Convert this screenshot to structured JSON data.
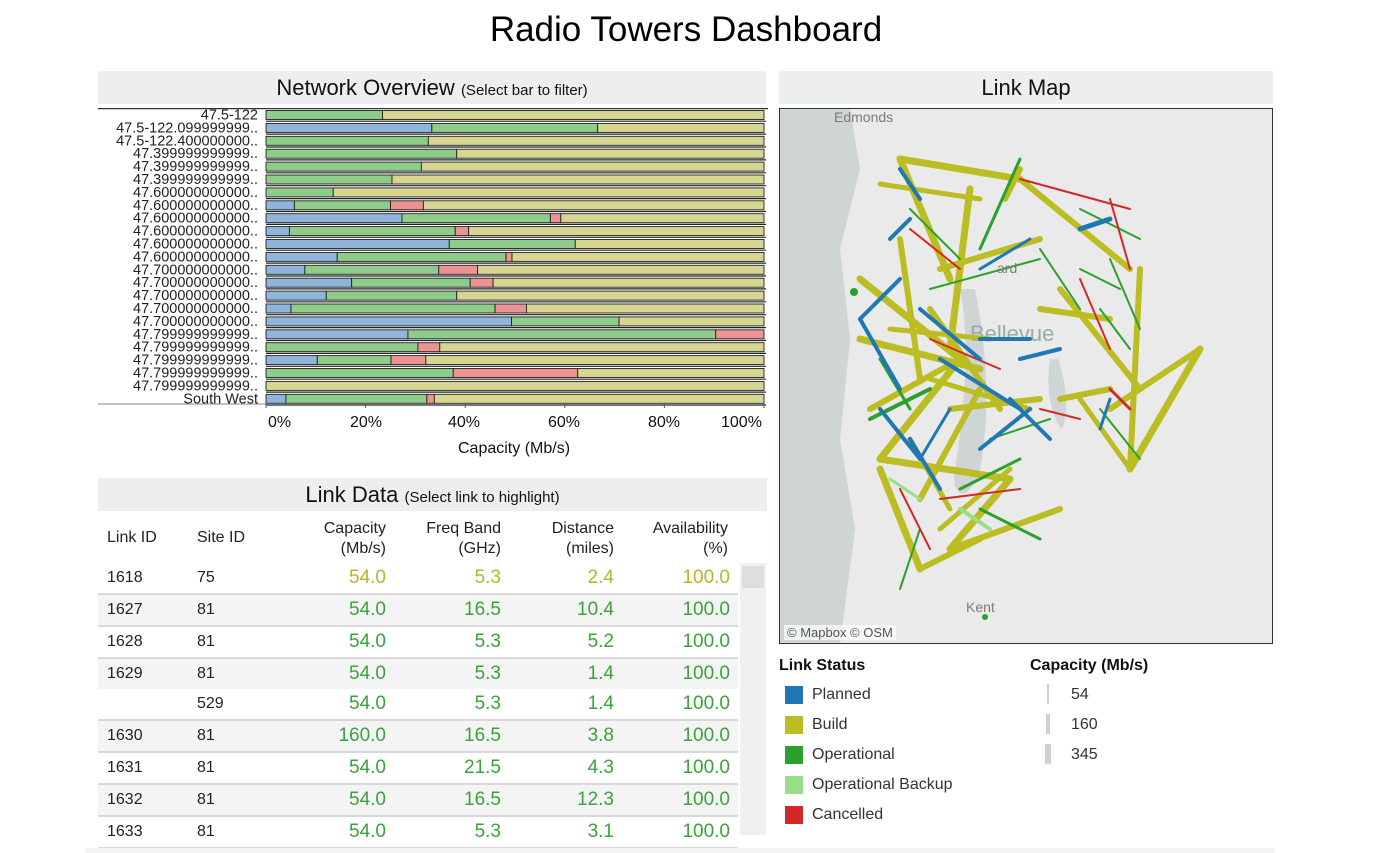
{
  "page": {
    "title": "Radio Towers Dashboard"
  },
  "overview": {
    "title": "Network Overview",
    "hint": "(Select bar to filter)",
    "axis_label": "Capacity (Mb/s)",
    "ticks": [
      "0%",
      "20%",
      "40%",
      "60%",
      "80%",
      "100%"
    ]
  },
  "chart_data": {
    "type": "bar",
    "stacked": true,
    "orientation": "horizontal",
    "xlabel": "Capacity (Mb/s)",
    "xlim": [
      0,
      100
    ],
    "categories": [
      "47.5-122",
      "47.5-122.099999999..",
      "47.5-122.400000000..",
      "47.399999999999..",
      "47.399999999999..",
      "47.399999999999..",
      "47.600000000000..",
      "47.600000000000..",
      "47.600000000000..",
      "47.600000000000..",
      "47.600000000000..",
      "47.600000000000..",
      "47.700000000000..",
      "47.700000000000..",
      "47.700000000000..",
      "47.700000000000..",
      "47.700000000000..",
      "47.799999999999..",
      "47.799999999999..",
      "47.799999999999..",
      "47.799999999999..",
      "47.799999999999..",
      "South West"
    ],
    "series": [
      {
        "name": "Planned",
        "color": "#8fb5dc",
        "values": [
          0,
          33.3,
          0,
          0,
          0,
          0,
          0,
          5.7,
          27.3,
          4.7,
          36.8,
          14.3,
          7.8,
          17.2,
          12.1,
          5,
          49.3,
          28.5,
          0,
          10.3,
          0,
          0,
          4
        ]
      },
      {
        "name": "Operational",
        "color": "#8ecc8a",
        "values": [
          23.4,
          33.3,
          32.6,
          38.3,
          31.2,
          25.3,
          13.5,
          19.3,
          29.8,
          33.3,
          25.3,
          33.9,
          26.9,
          23.8,
          26.2,
          41,
          21.6,
          61.8,
          30.5,
          14.8,
          37.6,
          0,
          28.3
        ]
      },
      {
        "name": "Cancelled",
        "color": "#ee9393",
        "values": [
          0,
          0,
          0,
          0,
          0,
          0,
          0,
          6.6,
          2.1,
          2.7,
          0,
          1.2,
          7.8,
          4.6,
          0,
          6.3,
          0,
          9.7,
          4.4,
          7,
          25,
          0,
          1.5
        ]
      },
      {
        "name": "Build",
        "color": "#d6d690",
        "values": [
          76.6,
          33.4,
          67.4,
          61.7,
          68.8,
          74.7,
          86.5,
          68.4,
          40.8,
          59.3,
          37.9,
          50.6,
          57.5,
          54.4,
          61.7,
          47.7,
          29.1,
          0,
          65.1,
          67.9,
          37.4,
          100,
          66.2
        ]
      }
    ]
  },
  "link_data": {
    "title": "Link Data",
    "hint": "(Select link to highlight)",
    "headers": {
      "link_id": "Link ID",
      "site_id": "Site ID",
      "capacity": [
        "Capacity",
        "(Mb/s)"
      ],
      "freq": [
        "Freq Band",
        "(GHz)"
      ],
      "distance": [
        "Distance",
        "(miles)"
      ],
      "availability": [
        "Availability",
        "(%)"
      ]
    },
    "rows": [
      {
        "link": "1618",
        "site": "75",
        "cap": "54.0",
        "freq": "5.3",
        "dist": "2.4",
        "avail": "100.0",
        "color": "#b5b52a"
      },
      {
        "link": "1627",
        "site": "81",
        "cap": "54.0",
        "freq": "16.5",
        "dist": "10.4",
        "avail": "100.0",
        "color": "#3aa43a"
      },
      {
        "link": "1628",
        "site": "81",
        "cap": "54.0",
        "freq": "5.3",
        "dist": "5.2",
        "avail": "100.0",
        "color": "#3aa43a"
      },
      {
        "link": "1629",
        "site": "81",
        "cap": "54.0",
        "freq": "5.3",
        "dist": "1.4",
        "avail": "100.0",
        "color": "#3aa43a"
      },
      {
        "link": "",
        "site": "529",
        "cap": "54.0",
        "freq": "5.3",
        "dist": "1.4",
        "avail": "100.0",
        "color": "#3aa43a"
      },
      {
        "link": "1630",
        "site": "81",
        "cap": "160.0",
        "freq": "16.5",
        "dist": "3.8",
        "avail": "100.0",
        "color": "#3aa43a"
      },
      {
        "link": "1631",
        "site": "81",
        "cap": "54.0",
        "freq": "21.5",
        "dist": "4.3",
        "avail": "100.0",
        "color": "#3aa43a"
      },
      {
        "link": "1632",
        "site": "81",
        "cap": "54.0",
        "freq": "16.5",
        "dist": "12.3",
        "avail": "100.0",
        "color": "#3aa43a"
      },
      {
        "link": "1633",
        "site": "81",
        "cap": "54.0",
        "freq": "5.3",
        "dist": "3.1",
        "avail": "100.0",
        "color": "#3aa43a"
      }
    ]
  },
  "map": {
    "title": "Link Map",
    "labels": {
      "edmonds": "Edmonds",
      "kent": "Kent",
      "bellevue": "Bellevue",
      "kirkland": "ard"
    },
    "attribution": "© Mapbox  © OSM"
  },
  "legend": {
    "status_title": "Link Status",
    "status_items": [
      {
        "label": "Planned",
        "color": "#1f77b4"
      },
      {
        "label": "Build",
        "color": "#bcbd22"
      },
      {
        "label": "Operational",
        "color": "#2ca02c"
      },
      {
        "label": "Operational Backup",
        "color": "#98df8a"
      },
      {
        "label": "Cancelled",
        "color": "#d62728"
      }
    ],
    "capacity_title": "Capacity (Mb/s)",
    "capacity_items": [
      "54",
      "160",
      "345"
    ]
  }
}
